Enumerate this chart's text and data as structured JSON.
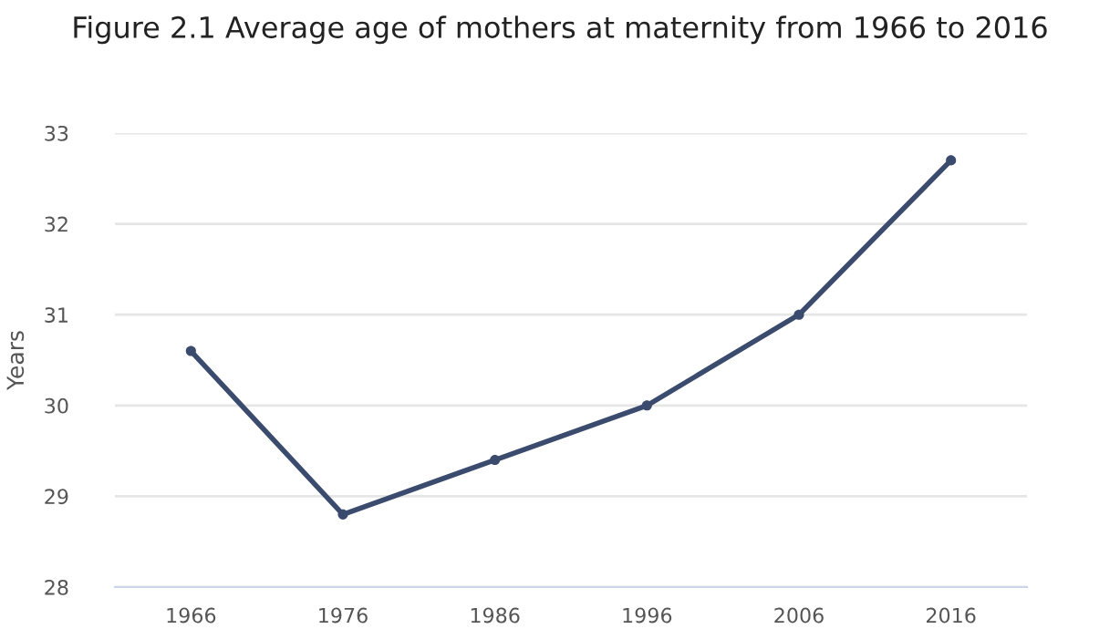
{
  "chart_data": {
    "type": "line",
    "title": "Figure 2.1 Average age of mothers at maternity from 1966 to 2016",
    "ylabel": "Years",
    "categories": [
      "1966",
      "1976",
      "1986",
      "1996",
      "2006",
      "2016"
    ],
    "series": [
      {
        "color": "#3b4b6e",
        "values": [
          30.6,
          28.8,
          29.4,
          30.0,
          31.0,
          32.7
        ]
      }
    ],
    "ylim": [
      28,
      33
    ],
    "yticks": [
      28,
      29,
      30,
      31,
      32,
      33
    ],
    "grid": "y",
    "marker": "circle",
    "line_style": "solid",
    "legend": false
  }
}
